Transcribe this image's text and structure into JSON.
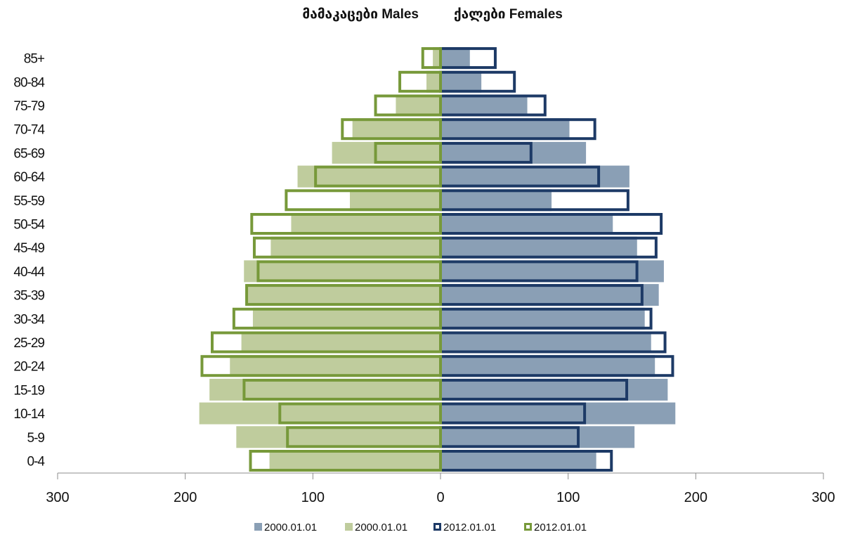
{
  "chart_data": {
    "type": "bar",
    "subtype": "population-pyramid",
    "title_left": "მამაკაცები  Males",
    "title_right": "ქალები Females",
    "categories": [
      "0-4",
      "5-9",
      "10-14",
      "15-19",
      "20-24",
      "25-29",
      "30-34",
      "35-39",
      "40-44",
      "45-49",
      "50-54",
      "55-59",
      "60-64",
      "65-69",
      "70-74",
      "75-79",
      "80-84",
      "85+"
    ],
    "x_ticks": [
      {
        "value": -300,
        "label": "300"
      },
      {
        "value": -200,
        "label": "200"
      },
      {
        "value": -100,
        "label": "100"
      },
      {
        "value": 0,
        "label": "0"
      },
      {
        "value": 100,
        "label": "100"
      },
      {
        "value": 200,
        "label": "200"
      },
      {
        "value": 300,
        "label": "300"
      }
    ],
    "xlim": [
      -300,
      300
    ],
    "legend_position": "bottom",
    "series": [
      {
        "name": "2000.01.01",
        "side": "female",
        "style": "filled",
        "color": "#8a9fb5",
        "values": [
          122,
          152,
          184,
          178,
          168,
          165,
          160,
          171,
          175,
          154,
          135,
          87,
          148,
          114,
          101,
          68,
          32,
          23
        ]
      },
      {
        "name": "2000.01.01",
        "side": "male",
        "style": "filled",
        "color": "#bfcc9d",
        "values": [
          134,
          160,
          189,
          181,
          165,
          156,
          147,
          152,
          154,
          133,
          117,
          71,
          112,
          85,
          69,
          35,
          11,
          6
        ]
      },
      {
        "name": "2012.01.01",
        "side": "female",
        "style": "outline",
        "color": "#1d3a66",
        "values": [
          135,
          109,
          114,
          147,
          183,
          177,
          166,
          159,
          155,
          170,
          174,
          148,
          125,
          72,
          122,
          83,
          59,
          44
        ]
      },
      {
        "name": "2012.01.01",
        "side": "male",
        "style": "outline",
        "color": "#77993a",
        "values": [
          150,
          121,
          127,
          155,
          188,
          180,
          163,
          153,
          144,
          147,
          149,
          122,
          99,
          52,
          78,
          52,
          33,
          15
        ]
      }
    ]
  }
}
